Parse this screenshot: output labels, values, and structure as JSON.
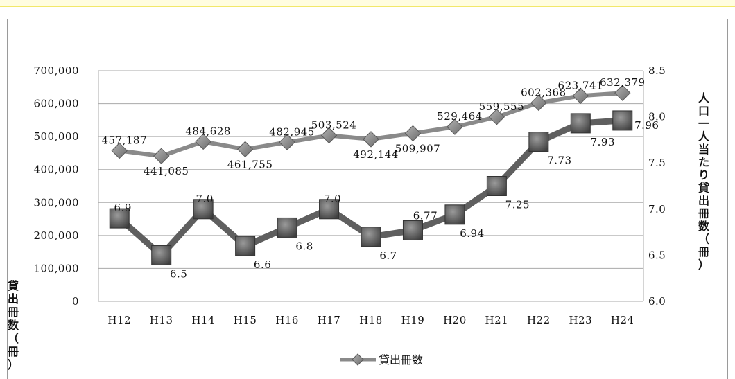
{
  "chart_data": {
    "type": "line",
    "categories": [
      "H12",
      "H13",
      "H14",
      "H15",
      "H16",
      "H17",
      "H18",
      "H19",
      "H20",
      "H21",
      "H22",
      "H23",
      "H24"
    ],
    "series": [
      {
        "name": "貸出冊数",
        "axis": "left",
        "values": [
          457187,
          441085,
          484628,
          461755,
          482945,
          503524,
          492144,
          509907,
          529464,
          559555,
          602368,
          623741,
          632379
        ],
        "labels": [
          "457,187",
          "441,085",
          "484,628",
          "461,755",
          "482,945",
          "503,524",
          "492,144",
          "509,907",
          "529,464",
          "559,555",
          "602,368",
          "623,741",
          "632,379"
        ],
        "color": "#8a8a8a",
        "marker": "diamond"
      },
      {
        "name": "",
        "axis": "right",
        "values": [
          6.9,
          6.5,
          7.0,
          6.6,
          6.8,
          7.0,
          6.7,
          6.77,
          6.94,
          7.25,
          7.73,
          7.93,
          7.96
        ],
        "labels": [
          "6.9",
          "6.5",
          "7.0",
          "6.6",
          "6.8",
          "7.0",
          "6.7",
          "6.77",
          "6.94",
          "7.25",
          "7.73",
          "7.93",
          "7.96"
        ],
        "color": "#5f5f5f",
        "marker": "square"
      }
    ],
    "y_left": {
      "ylim": [
        0,
        700000
      ],
      "ticks": [
        0,
        100000,
        200000,
        300000,
        400000,
        500000,
        600000,
        700000
      ],
      "tick_labels": [
        "0",
        "100,000",
        "200,000",
        "300,000",
        "400,000",
        "500,000",
        "600,000",
        "700,000"
      ],
      "label": "貸出冊数（冊）"
    },
    "y_right": {
      "ylim": [
        6.0,
        8.5
      ],
      "ticks": [
        6.0,
        6.5,
        7.0,
        7.5,
        8.0,
        8.5
      ],
      "tick_labels": [
        "6.0",
        "6.5",
        "7.0",
        "7.5",
        "8.0",
        "8.5"
      ],
      "label": "人口一人当たり貸出冊数（冊）"
    },
    "grid": true,
    "legend": "bottom-center"
  }
}
